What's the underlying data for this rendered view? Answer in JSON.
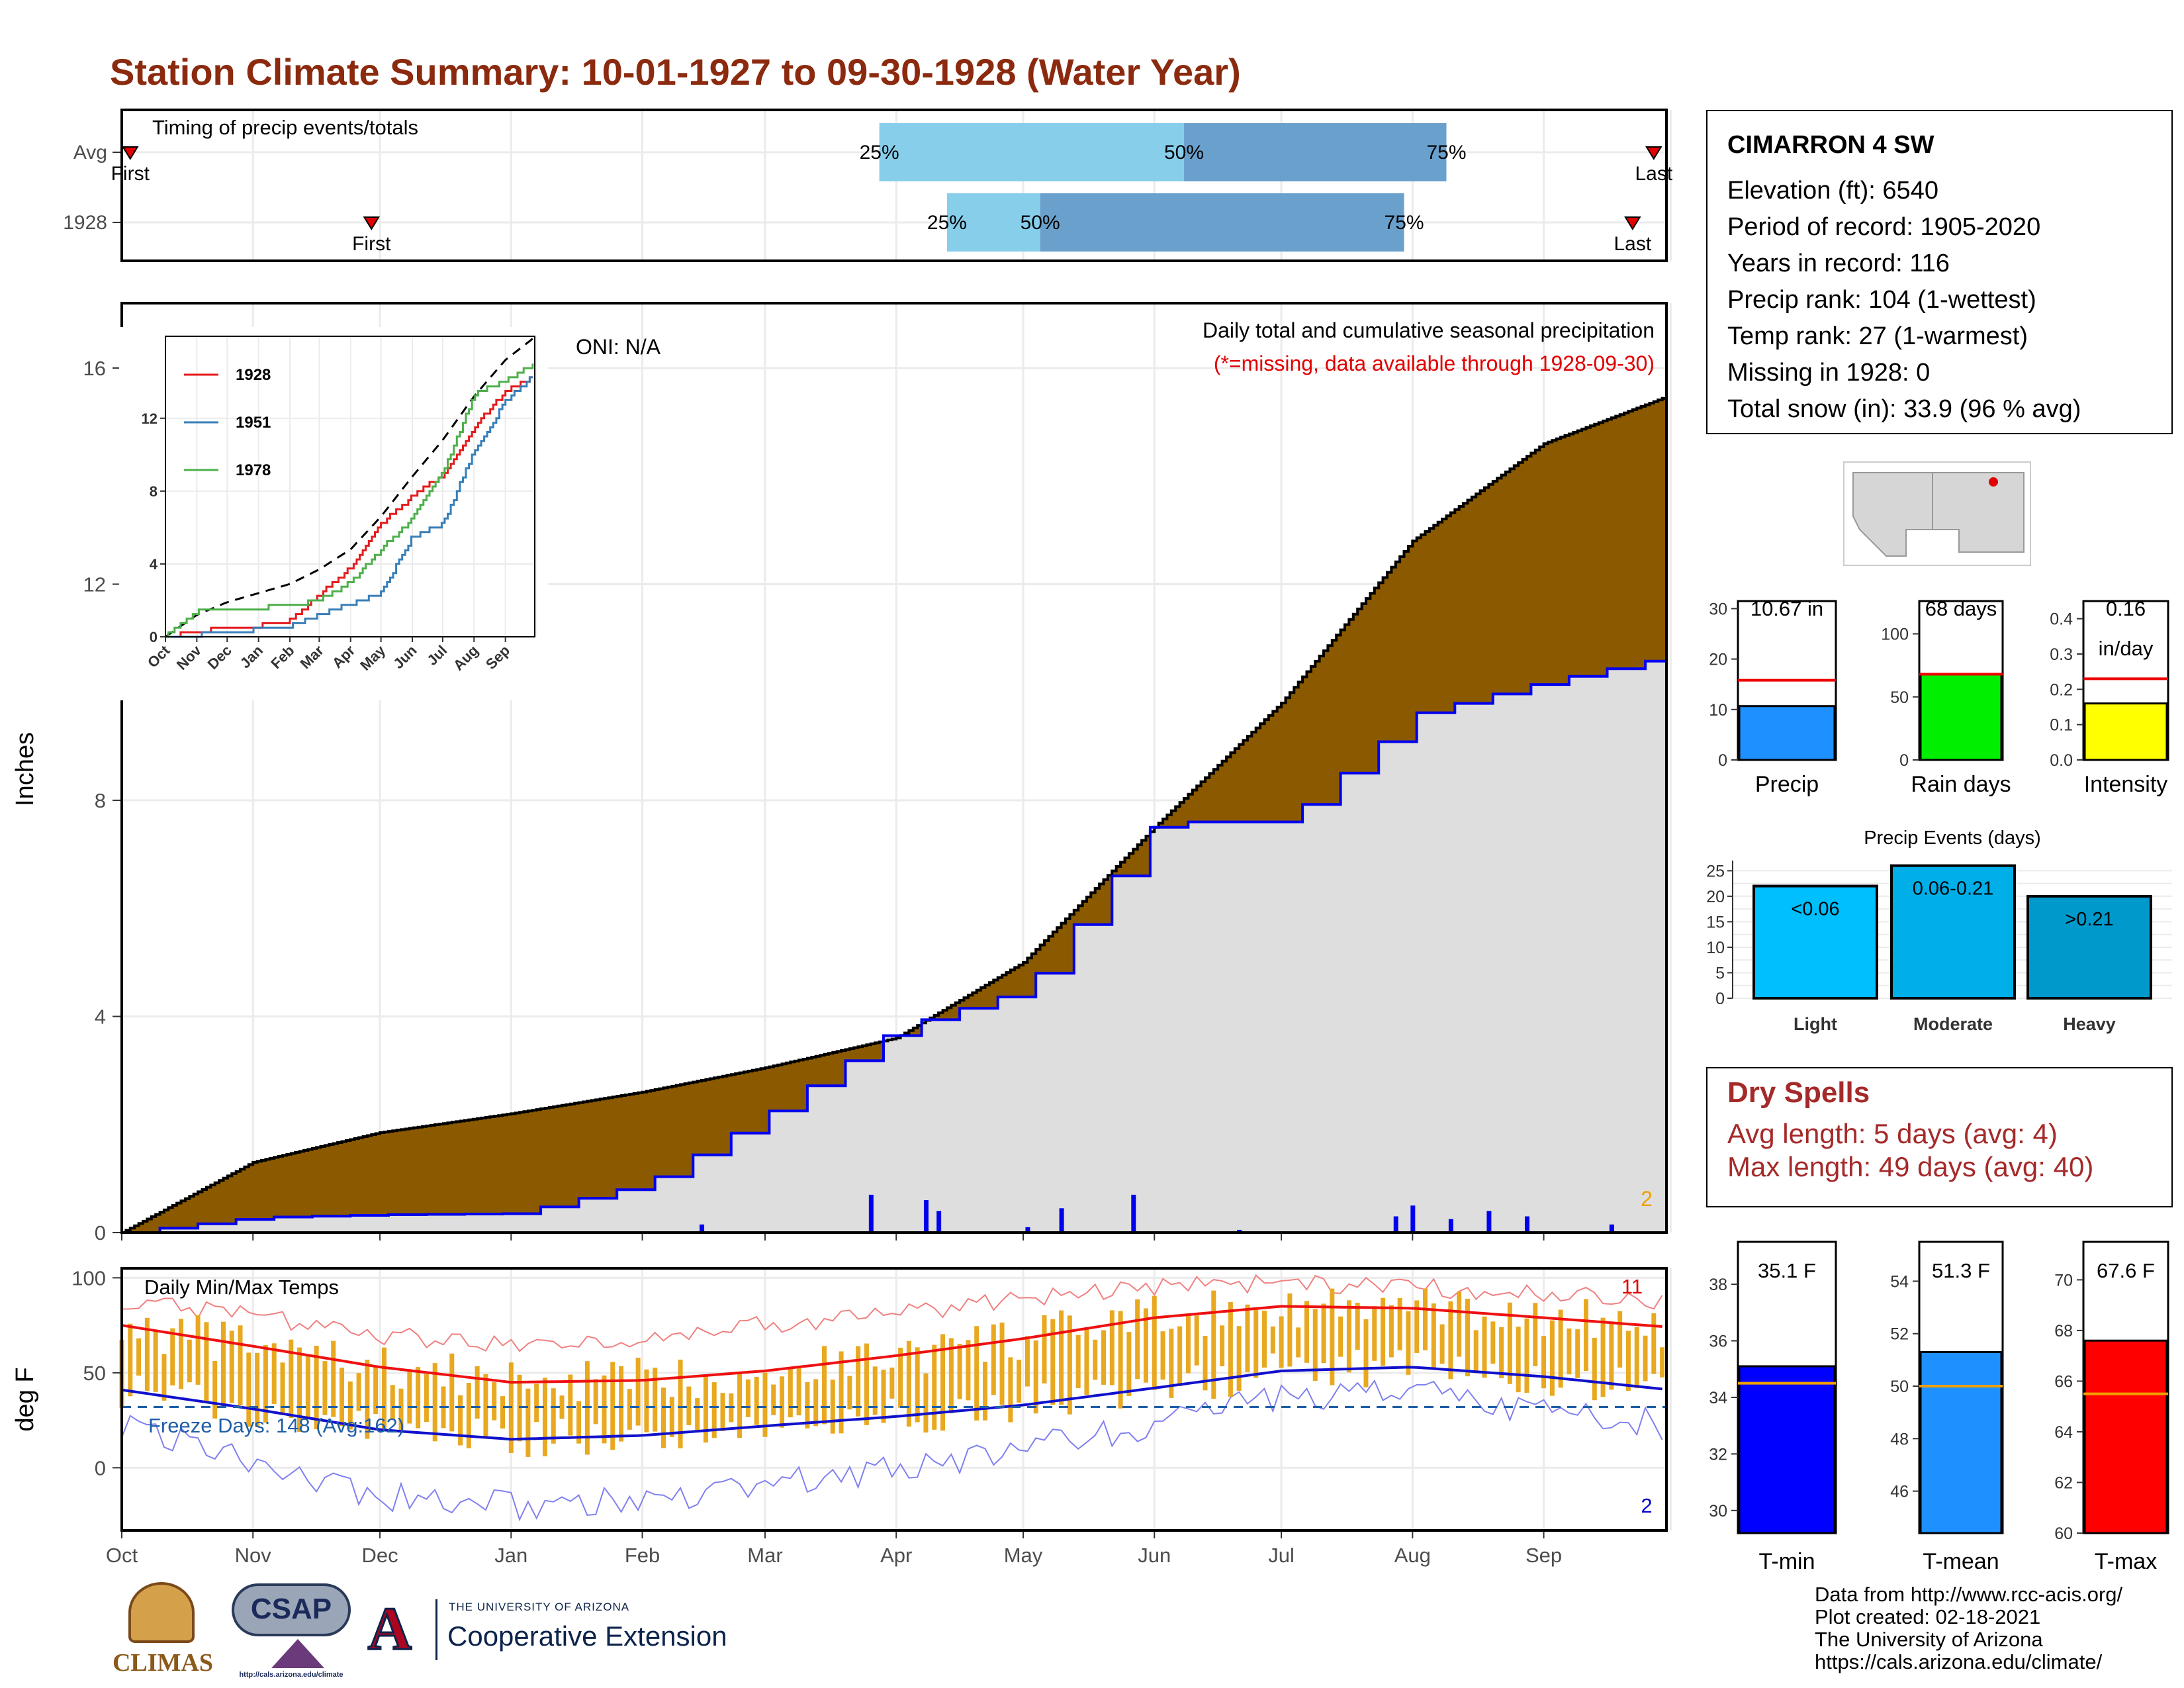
{
  "title": "Station Climate Summary: 10-01-1927 to 09-30-1928 (Water Year)",
  "timing": {
    "label": "Timing of precip events/totals",
    "rows": [
      {
        "name": "Avg",
        "first": "First",
        "last": "Last",
        "p25": "25%",
        "p50": "50%",
        "p75": "75%"
      },
      {
        "name": "1928",
        "first": "First",
        "last": "Last",
        "p25": "25%",
        "p50": "50%",
        "p75": "75%"
      }
    ]
  },
  "station": {
    "name": "CIMARRON 4 SW",
    "lines": [
      "Elevation (ft): 6540",
      "Period of record: 1905-2020",
      "Years in record: 116",
      "Precip rank: 104 (1-wettest)",
      "Temp rank: 27 (1-warmest)",
      "Missing in 1928: 0",
      "Total snow (in): 33.9 (96 % avg)"
    ]
  },
  "precip_panel": {
    "ylabel": "Inches",
    "yticks": [
      "0",
      "4",
      "8",
      "12",
      "16"
    ],
    "oni": "ONI: N/A",
    "subtitle": "Daily total and cumulative seasonal precipitation",
    "missing_note": "(*=missing, data available through 1928-09-30)",
    "corner_count": "2"
  },
  "inset": {
    "yticks": [
      "0",
      "4",
      "8",
      "12"
    ],
    "months": [
      "Oct",
      "Nov",
      "Dec",
      "Jan",
      "Feb",
      "Mar",
      "Apr",
      "May",
      "Jun",
      "Jul",
      "Aug",
      "Sep"
    ],
    "legend": [
      "1928",
      "1951",
      "1978"
    ]
  },
  "temp_panel": {
    "ylabel": "deg F",
    "yticks": [
      "0",
      "50",
      "100"
    ],
    "label": "Daily Min/Max Temps",
    "freeze": "Freeze Days: 148 (Avg:162)",
    "count_high": "11",
    "count_low": "2"
  },
  "months": [
    "Oct",
    "Nov",
    "Dec",
    "Jan",
    "Feb",
    "Mar",
    "Apr",
    "May",
    "Jun",
    "Jul",
    "Aug",
    "Sep"
  ],
  "summary_bars": [
    {
      "label": "Precip",
      "value_text": "10.67 in",
      "yticks": [
        "0",
        "10",
        "20",
        "30"
      ]
    },
    {
      "label": "Rain days",
      "value_text": "68 days",
      "yticks": [
        "0",
        "50",
        "100"
      ]
    },
    {
      "label": "Intensity",
      "value_text": "0.16",
      "value_text2": "in/day",
      "yticks": [
        "0.0",
        "0.1",
        "0.2",
        "0.3",
        "0.4"
      ]
    }
  ],
  "events": {
    "title": "Precip Events (days)",
    "yticks": [
      "0",
      "5",
      "10",
      "15",
      "20",
      "25"
    ],
    "bars": [
      {
        "label": "Light",
        "range": "<0.06"
      },
      {
        "label": "Moderate",
        "range": "0.06-0.21"
      },
      {
        "label": "Heavy",
        "range": ">0.21"
      }
    ]
  },
  "dry_spells": {
    "title": "Dry Spells",
    "avg": "Avg length: 5 days (avg: 4)",
    "max": "Max length: 49 days (avg: 40)"
  },
  "temp_bars": [
    {
      "label": "T-min",
      "value_text": "35.1 F",
      "yticks": [
        "30",
        "32",
        "34",
        "36",
        "38"
      ]
    },
    {
      "label": "T-mean",
      "value_text": "51.3 F",
      "yticks": [
        "46",
        "48",
        "50",
        "52",
        "54"
      ]
    },
    {
      "label": "T-max",
      "value_text": "67.6 F",
      "yticks": [
        "60",
        "62",
        "64",
        "66",
        "68",
        "70"
      ]
    }
  ],
  "footer": [
    "Data from http://www.rcc-acis.org/",
    "Plot created: 02-18-2021",
    "The University of Arizona",
    "https://cals.arizona.edu/climate/"
  ],
  "logos": {
    "climas": "CLIMAS",
    "csap": "CSAP",
    "csap_url": "http://cals.arizona.edu/climate",
    "ua_small": "THE UNIVERSITY OF ARIZONA",
    "ua_big": "Cooperative Extension"
  },
  "colors": {
    "title": "#8b2a0e",
    "cum_precip": "#8b5a00",
    "cum_avg_fill": "#dedede",
    "precip_line": "#0000ee",
    "temp_bars": "#e8a820",
    "tmax_line": "#ee1111",
    "tmin_line": "#1111cc",
    "light_blue": "#87ceeb",
    "mid_blue": "#6aa0cc"
  },
  "chart_data": [
    {
      "type": "bar",
      "title": "Timing of precip events/totals",
      "categories": [
        "Avg",
        "1928"
      ],
      "series": [
        {
          "name": "First",
          "values": [
            "Oct 3",
            "Nov 29"
          ]
        },
        {
          "name": "25%",
          "values": [
            "Mar 28",
            "Apr 13"
          ]
        },
        {
          "name": "50%",
          "values": [
            "Jun 8",
            "May 5"
          ]
        },
        {
          "name": "75%",
          "values": [
            "Aug 9",
            "Jul 30"
          ]
        },
        {
          "name": "Last",
          "values": [
            "Sep 27",
            "Sep 22"
          ]
        }
      ]
    },
    {
      "type": "area",
      "title": "Daily total and cumulative seasonal precipitation",
      "ylabel": "Inches",
      "ylim": [
        0,
        17.2
      ],
      "x": [
        "Oct",
        "Nov",
        "Dec",
        "Jan",
        "Feb",
        "Mar",
        "Apr",
        "May",
        "Jun",
        "Jul",
        "Aug",
        "Sep",
        "Sep 30"
      ],
      "series": [
        {
          "name": "Average cumulative",
          "values": [
            0,
            1.3,
            1.85,
            2.2,
            2.6,
            3.05,
            3.6,
            5.0,
            7.5,
            9.8,
            12.8,
            14.6,
            15.5
          ]
        },
        {
          "name": "1928 cumulative",
          "values": [
            0,
            0.28,
            0.33,
            0.35,
            0.9,
            2.2,
            3.8,
            4.5,
            7.6,
            7.6,
            9.6,
            10.2,
            10.67
          ]
        }
      ],
      "daily_precip_in": [
        {
          "date": "Feb 15",
          "value": 0.15
        },
        {
          "date": "Mar 26",
          "value": 0.7
        },
        {
          "date": "Apr 8",
          "value": 0.6
        },
        {
          "date": "Apr 11",
          "value": 0.4
        },
        {
          "date": "May 2",
          "value": 0.1
        },
        {
          "date": "May 10",
          "value": 0.45
        },
        {
          "date": "May 27",
          "value": 0.7
        },
        {
          "date": "Jun 21",
          "value": 0.05
        },
        {
          "date": "Jul 28",
          "value": 0.3
        },
        {
          "date": "Aug 1",
          "value": 0.5
        },
        {
          "date": "Aug 10",
          "value": 0.25
        },
        {
          "date": "Aug 19",
          "value": 0.4
        },
        {
          "date": "Aug 28",
          "value": 0.3
        },
        {
          "date": "Sep 17",
          "value": 0.15
        }
      ]
    },
    {
      "type": "line",
      "title": "Inset cumulative precipitation",
      "x": [
        "Oct",
        "Nov",
        "Dec",
        "Jan",
        "Feb",
        "Mar",
        "Apr",
        "May",
        "Jun",
        "Jul",
        "Aug",
        "Sep",
        "Sep 30"
      ],
      "ylim": [
        0,
        16.5
      ],
      "series": [
        {
          "name": "Average",
          "values": [
            0,
            1.2,
            1.9,
            2.4,
            2.9,
            3.7,
            4.8,
            6.6,
            8.8,
            10.8,
            13.2,
            15.2,
            16.5
          ]
        },
        {
          "name": "1928",
          "values": [
            0,
            0.3,
            0.5,
            0.6,
            0.9,
            2.3,
            3.8,
            6.2,
            7.7,
            8.9,
            11.5,
            13.5,
            14.3
          ]
        },
        {
          "name": "1951",
          "values": [
            0,
            0.1,
            0.3,
            0.4,
            0.6,
            1.2,
            1.8,
            2.4,
            5.5,
            6.2,
            10.2,
            12.9,
            14.5
          ]
        },
        {
          "name": "1978",
          "values": [
            0,
            1.4,
            1.5,
            1.6,
            1.7,
            2.0,
            3.0,
            4.8,
            6.5,
            9.0,
            13.3,
            14.1,
            15.0
          ]
        }
      ]
    },
    {
      "type": "line",
      "title": "Daily Min/Max Temps",
      "ylabel": "deg F",
      "ylim": [
        -33,
        105
      ],
      "x": [
        "Oct 1",
        "Nov 1",
        "Dec 1",
        "Jan 1",
        "Feb 1",
        "Mar 1",
        "Apr 1",
        "May 1",
        "Jun 1",
        "Jul 1",
        "Aug 1",
        "Sep 1",
        "Sep 30"
      ],
      "series": [
        {
          "name": "Avg Tmax",
          "values": [
            75,
            64,
            53,
            45,
            46,
            51,
            59,
            68,
            79,
            85,
            84,
            79,
            74
          ]
        },
        {
          "name": "Avg Tmin",
          "values": [
            41,
            31,
            20,
            15,
            17,
            22,
            27,
            33,
            42,
            51,
            53,
            48,
            41
          ]
        },
        {
          "name": "Record high",
          "values": [
            88,
            80,
            70,
            65,
            68,
            75,
            82,
            88,
            95,
            97,
            95,
            92,
            88
          ]
        },
        {
          "name": "Record low",
          "values": [
            22,
            5,
            -15,
            -20,
            -18,
            -10,
            0,
            10,
            22,
            37,
            40,
            30,
            22
          ]
        }
      ],
      "freeze_threshold": 32
    },
    {
      "type": "bar",
      "categories": [
        "Precip",
        "Rain days",
        "Intensity"
      ],
      "series": [
        {
          "name": "1928",
          "values": [
            10.67,
            68,
            0.16
          ]
        },
        {
          "name": "Average",
          "values": [
            15.8,
            68,
            0.23
          ]
        }
      ]
    },
    {
      "type": "bar",
      "title": "Precip Events (days)",
      "categories": [
        "Light",
        "Moderate",
        "Heavy"
      ],
      "values": [
        22,
        26,
        20
      ],
      "ylim": [
        0,
        27
      ]
    },
    {
      "type": "bar",
      "categories": [
        "T-min",
        "T-mean",
        "T-max"
      ],
      "series": [
        {
          "name": "1928",
          "values": [
            35.1,
            51.3,
            67.6
          ]
        },
        {
          "name": "Average",
          "values": [
            34.5,
            50.0,
            65.5
          ]
        }
      ]
    }
  ]
}
